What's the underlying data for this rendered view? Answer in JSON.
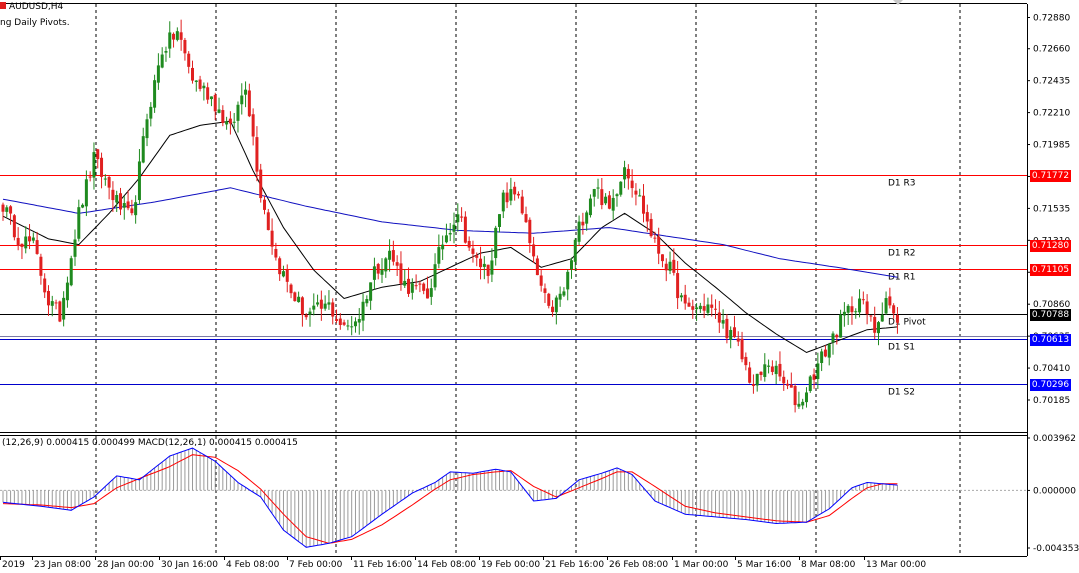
{
  "header": {
    "symbol": "AUDUSD,H4",
    "indicator": "ng Daily Pivots."
  },
  "macd_header": "(12,26,9) 0.000415 0.000499 MACD(12,26,1) 0.000415 0.000415",
  "colors": {
    "bull": "#1f8a1f",
    "bear": "#e02020",
    "resistance": "#ff0000",
    "support": "#0000cc",
    "pivot": "#000000",
    "ma_fast": "#000000",
    "ma_slow": "#1010c0",
    "macd_signal": "#ff0000",
    "macd_line": "#0000ff",
    "histogram": "#9a9a9a"
  },
  "chart_data": [
    {
      "type": "candlestick",
      "title": "AUDUSD,H4",
      "ylim": [
        0.7008,
        0.7296
      ],
      "y_ticks": [
        "0.72880",
        "0.72660",
        "0.72435",
        "0.72210",
        "0.71985",
        "0.71760",
        "0.71535",
        "0.71310",
        "0.71085",
        "0.70860",
        "0.70635",
        "0.70410",
        "0.70185"
      ],
      "x_ticks": [
        "2019",
        "23 Jan 08:00",
        "28 Jan 00:00",
        "30 Jan 16:00",
        "4 Feb 08:00",
        "7 Feb 00:00",
        "11 Feb 16:00",
        "14 Feb 08:00",
        "19 Feb 00:00",
        "21 Feb 16:00",
        "26 Feb 08:00",
        "1 Mar 00:00",
        "5 Mar 16:00",
        "8 Mar 08:00",
        "13 Mar 00:00"
      ],
      "pivot_levels": [
        {
          "name": "D1 R3",
          "value": 0.71772,
          "label": "0.71772",
          "kind": "resistance"
        },
        {
          "name": "D1 R2",
          "value": 0.7128,
          "label": "0.71280",
          "kind": "resistance"
        },
        {
          "name": "D1 R1",
          "value": 0.71105,
          "label": "0.71105",
          "kind": "resistance"
        },
        {
          "name": "D1 Pivot",
          "value": 0.70788,
          "label": "0.70788",
          "kind": "pivot"
        },
        {
          "name": "D1 S1",
          "value": 0.70613,
          "label": "0.70613",
          "kind": "support"
        },
        {
          "name": "D1 S2",
          "value": 0.70296,
          "label": "0.70296",
          "kind": "support"
        }
      ],
      "price_anchors": [
        [
          0,
          0.7156
        ],
        [
          4,
          0.7133
        ],
        [
          8,
          0.7128
        ],
        [
          12,
          0.7088
        ],
        [
          15,
          0.7078
        ],
        [
          20,
          0.715
        ],
        [
          24,
          0.7188
        ],
        [
          30,
          0.7158
        ],
        [
          34,
          0.7145
        ],
        [
          38,
          0.7218
        ],
        [
          42,
          0.7265
        ],
        [
          46,
          0.7278
        ],
        [
          50,
          0.7245
        ],
        [
          55,
          0.7232
        ],
        [
          60,
          0.7208
        ],
        [
          64,
          0.7242
        ],
        [
          68,
          0.7165
        ],
        [
          72,
          0.7118
        ],
        [
          76,
          0.7095
        ],
        [
          80,
          0.7078
        ],
        [
          86,
          0.7085
        ],
        [
          90,
          0.7068
        ],
        [
          94,
          0.7078
        ],
        [
          98,
          0.711
        ],
        [
          102,
          0.7122
        ],
        [
          106,
          0.71
        ],
        [
          112,
          0.7092
        ],
        [
          116,
          0.713
        ],
        [
          120,
          0.7152
        ],
        [
          124,
          0.7118
        ],
        [
          128,
          0.711
        ],
        [
          132,
          0.716
        ],
        [
          136,
          0.7165
        ],
        [
          140,
          0.7115
        ],
        [
          144,
          0.708
        ],
        [
          148,
          0.7095
        ],
        [
          152,
          0.714
        ],
        [
          156,
          0.717
        ],
        [
          160,
          0.7152
        ],
        [
          164,
          0.7185
        ],
        [
          168,
          0.716
        ],
        [
          172,
          0.7128
        ],
        [
          176,
          0.711
        ],
        [
          180,
          0.7082
        ],
        [
          186,
          0.7085
        ],
        [
          190,
          0.7072
        ],
        [
          194,
          0.7055
        ],
        [
          198,
          0.7028
        ],
        [
          202,
          0.7045
        ],
        [
          206,
          0.703
        ],
        [
          210,
          0.7015
        ],
        [
          214,
          0.7038
        ],
        [
          218,
          0.7058
        ],
        [
          222,
          0.7078
        ],
        [
          226,
          0.709
        ],
        [
          230,
          0.7068
        ],
        [
          233,
          0.7092
        ],
        [
          236,
          0.707
        ]
      ],
      "candle_count": 237,
      "moving_averages": [
        {
          "name": "MA fast",
          "anchors": [
            [
              0,
              0.7148
            ],
            [
              12,
              0.7132
            ],
            [
              20,
              0.7128
            ],
            [
              28,
              0.715
            ],
            [
              36,
              0.7175
            ],
            [
              44,
              0.7205
            ],
            [
              52,
              0.7212
            ],
            [
              60,
              0.7215
            ],
            [
              66,
              0.718
            ],
            [
              74,
              0.714
            ],
            [
              82,
              0.711
            ],
            [
              90,
              0.709
            ],
            [
              100,
              0.7098
            ],
            [
              110,
              0.7102
            ],
            [
              118,
              0.7112
            ],
            [
              126,
              0.7122
            ],
            [
              134,
              0.7126
            ],
            [
              142,
              0.7112
            ],
            [
              150,
              0.7118
            ],
            [
              158,
              0.714
            ],
            [
              164,
              0.715
            ],
            [
              172,
              0.7136
            ],
            [
              180,
              0.7115
            ],
            [
              188,
              0.7098
            ],
            [
              196,
              0.708
            ],
            [
              204,
              0.7065
            ],
            [
              212,
              0.7052
            ],
            [
              220,
              0.706
            ],
            [
              228,
              0.7068
            ],
            [
              236,
              0.707
            ]
          ]
        },
        {
          "name": "MA slow",
          "anchors": [
            [
              0,
              0.716
            ],
            [
              20,
              0.715
            ],
            [
              40,
              0.7158
            ],
            [
              60,
              0.7168
            ],
            [
              80,
              0.7155
            ],
            [
              100,
              0.7144
            ],
            [
              120,
              0.7138
            ],
            [
              140,
              0.7136
            ],
            [
              160,
              0.714
            ],
            [
              175,
              0.7134
            ],
            [
              190,
              0.7128
            ],
            [
              205,
              0.7118
            ],
            [
              220,
              0.7112
            ],
            [
              236,
              0.7105
            ]
          ]
        }
      ]
    },
    {
      "type": "macd",
      "title": "MACD(12,26,1)",
      "ylim": [
        -0.004353,
        0.003962
      ],
      "y_ticks": [
        "0.003962",
        "0.000000",
        "-0.004353"
      ],
      "values": {
        "histogram": 0.000415,
        "signal": 0.000499,
        "macd": 0.000415
      },
      "macd_anchors": [
        [
          0,
          -0.0009
        ],
        [
          10,
          -0.0012
        ],
        [
          18,
          -0.0015
        ],
        [
          24,
          -0.0005
        ],
        [
          30,
          0.0011
        ],
        [
          36,
          0.0008
        ],
        [
          44,
          0.0026
        ],
        [
          50,
          0.0032
        ],
        [
          56,
          0.0022
        ],
        [
          62,
          0.0006
        ],
        [
          68,
          -0.0005
        ],
        [
          74,
          -0.003
        ],
        [
          80,
          -0.0043
        ],
        [
          86,
          -0.004
        ],
        [
          92,
          -0.0035
        ],
        [
          100,
          -0.0018
        ],
        [
          108,
          -0.0002
        ],
        [
          114,
          0.0006
        ],
        [
          118,
          0.0014
        ],
        [
          124,
          0.0013
        ],
        [
          130,
          0.0016
        ],
        [
          134,
          0.0014
        ],
        [
          140,
          -0.0008
        ],
        [
          146,
          -0.0006
        ],
        [
          152,
          0.0008
        ],
        [
          158,
          0.0013
        ],
        [
          162,
          0.0017
        ],
        [
          166,
          0.0012
        ],
        [
          172,
          -0.0008
        ],
        [
          180,
          -0.0018
        ],
        [
          188,
          -0.002
        ],
        [
          196,
          -0.0022
        ],
        [
          204,
          -0.0025
        ],
        [
          212,
          -0.0024
        ],
        [
          218,
          -0.0014
        ],
        [
          224,
          0.0002
        ],
        [
          228,
          0.0006
        ],
        [
          232,
          0.0005
        ],
        [
          236,
          0.0004
        ]
      ],
      "signal_anchors": [
        [
          0,
          -0.001
        ],
        [
          10,
          -0.0011
        ],
        [
          18,
          -0.0013
        ],
        [
          24,
          -0.001
        ],
        [
          30,
          0.0002
        ],
        [
          36,
          0.0009
        ],
        [
          44,
          0.0018
        ],
        [
          50,
          0.0027
        ],
        [
          56,
          0.0025
        ],
        [
          62,
          0.0015
        ],
        [
          68,
          0.0001
        ],
        [
          74,
          -0.0018
        ],
        [
          80,
          -0.0035
        ],
        [
          86,
          -0.004
        ],
        [
          92,
          -0.0037
        ],
        [
          100,
          -0.0026
        ],
        [
          108,
          -0.0011
        ],
        [
          114,
          0.0001
        ],
        [
          118,
          0.0008
        ],
        [
          124,
          0.0012
        ],
        [
          130,
          0.0014
        ],
        [
          134,
          0.0015
        ],
        [
          140,
          0.0003
        ],
        [
          146,
          -0.0005
        ],
        [
          152,
          0.0002
        ],
        [
          158,
          0.0009
        ],
        [
          162,
          0.0014
        ],
        [
          166,
          0.0014
        ],
        [
          172,
          0.0003
        ],
        [
          180,
          -0.0012
        ],
        [
          188,
          -0.0017
        ],
        [
          196,
          -0.002
        ],
        [
          204,
          -0.0023
        ],
        [
          212,
          -0.0024
        ],
        [
          218,
          -0.0019
        ],
        [
          224,
          -0.0006
        ],
        [
          228,
          0.0002
        ],
        [
          232,
          0.0005
        ],
        [
          236,
          0.0005
        ]
      ]
    }
  ]
}
